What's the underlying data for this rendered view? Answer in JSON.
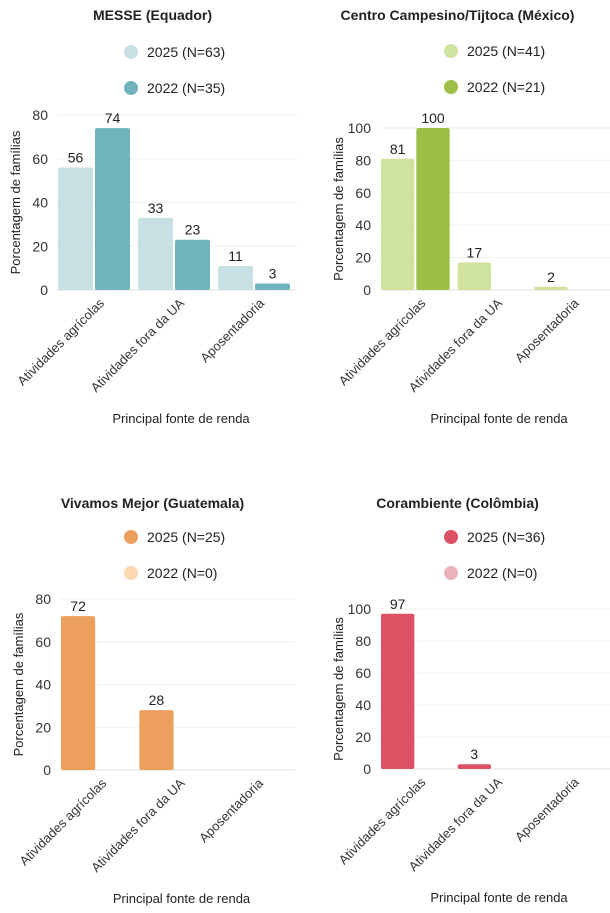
{
  "chart_data": [
    {
      "type": "bar",
      "title": "MESSE (Equador)",
      "xlabel": "Principal fonte de renda",
      "ylabel": "Porcentagem de famílias",
      "categories": [
        "Atividades agrícolas",
        "Atividades fora da UA",
        "Aposentadoria"
      ],
      "yticks": [
        0,
        20,
        40,
        60,
        80
      ],
      "ylim": [
        0,
        80
      ],
      "grid": true,
      "legend_position": "top-center",
      "series": [
        {
          "name": "2025 (N=63)",
          "color": "#c6e0e3",
          "values": [
            56,
            33,
            11
          ]
        },
        {
          "name": "2022 (N=35)",
          "color": "#6fb4bc",
          "values": [
            74,
            23,
            3
          ]
        }
      ]
    },
    {
      "type": "bar",
      "title": "Centro Campesino/Tijtoca (México)",
      "xlabel": "Principal fonte de renda",
      "ylabel": "Porcentagem de famílias",
      "categories": [
        "Atividades agrícolas",
        "Atividades fora da UA",
        "Aposentadoria"
      ],
      "yticks": [
        0,
        20,
        40,
        60,
        80,
        100
      ],
      "ylim": [
        0,
        100
      ],
      "grid": true,
      "legend_position": "top-center",
      "series": [
        {
          "name": "2025 (N=41)",
          "color": "#cfe39e",
          "values": [
            81,
            17,
            2
          ]
        },
        {
          "name": "2022 (N=21)",
          "color": "#9dbe47",
          "values": [
            100,
            0,
            0
          ]
        }
      ]
    },
    {
      "type": "bar",
      "title": "Vivamos Mejor (Guatemala)",
      "xlabel": "Principal fonte de renda",
      "ylabel": "Porcentagem de famílias",
      "categories": [
        "Atividades agrícolas",
        "Atividades fora da UA",
        "Aposentadoria"
      ],
      "yticks": [
        0,
        20,
        40,
        60,
        80
      ],
      "ylim": [
        0,
        80
      ],
      "grid": true,
      "legend_position": "top-center",
      "series": [
        {
          "name": "2025 (N=25)",
          "color": "#ed9f5e",
          "values": [
            72,
            28,
            0
          ]
        },
        {
          "name": "2022 (N=0)",
          "color": "#fdd8b0",
          "values": [
            0,
            0,
            0
          ]
        }
      ]
    },
    {
      "type": "bar",
      "title": "Corambiente (Colômbia)",
      "xlabel": "Principal fonte de renda",
      "ylabel": "Porcentagem de famílias",
      "categories": [
        "Atividades agrícolas",
        "Atividades fora da UA",
        "Aposentadoria"
      ],
      "yticks": [
        0,
        20,
        40,
        60,
        80,
        100
      ],
      "ylim": [
        0,
        100
      ],
      "grid": true,
      "legend_position": "top-center",
      "series": [
        {
          "name": "2025 (N=36)",
          "color": "#dc5264",
          "values": [
            97,
            3,
            0
          ]
        },
        {
          "name": "2022 (N=0)",
          "color": "#e9b3b9",
          "values": [
            0,
            0,
            0
          ]
        }
      ]
    }
  ]
}
